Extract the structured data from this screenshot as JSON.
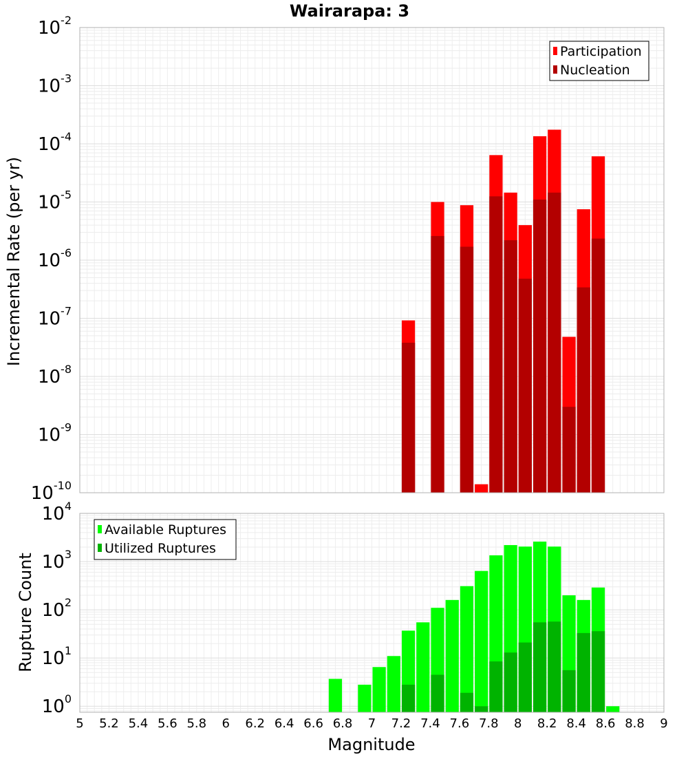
{
  "chart_data": [
    {
      "type": "bar",
      "title": "Wairarapa: 3",
      "xlabel": "",
      "ylabel": "Incremental Rate (per yr)",
      "yscale": "log",
      "ylim": [
        1e-10,
        0.01
      ],
      "xlim": [
        5,
        9
      ],
      "bar_width": 0.1,
      "grid": true,
      "legend_position": "top-right",
      "y_ticks": [
        {
          "base": "10",
          "exp": "-10",
          "value": 1e-10
        },
        {
          "base": "10",
          "exp": "-9",
          "value": 1e-09
        },
        {
          "base": "10",
          "exp": "-8",
          "value": 1e-08
        },
        {
          "base": "10",
          "exp": "-7",
          "value": 1e-07
        },
        {
          "base": "10",
          "exp": "-6",
          "value": 1e-06
        },
        {
          "base": "10",
          "exp": "-5",
          "value": 1e-05
        },
        {
          "base": "10",
          "exp": "-4",
          "value": 0.0001
        },
        {
          "base": "10",
          "exp": "-3",
          "value": 0.001
        },
        {
          "base": "10",
          "exp": "-2",
          "value": 0.01
        }
      ],
      "series": [
        {
          "name": "Participation",
          "color": "#ff0000",
          "x": [
            7.25,
            7.45,
            7.65,
            7.75,
            7.85,
            7.95,
            8.05,
            8.15,
            8.25,
            8.35,
            8.45,
            8.55
          ],
          "values": [
            9.2e-08,
            1e-05,
            8.8e-06,
            1.4e-10,
            6.4e-05,
            1.45e-05,
            4e-06,
            0.000135,
            0.000175,
            4.8e-08,
            7.5e-06,
            6.1e-05
          ]
        },
        {
          "name": "Nucleation",
          "color": "#b30000",
          "x": [
            7.25,
            7.45,
            7.65,
            7.85,
            7.95,
            8.05,
            8.15,
            8.25,
            8.35,
            8.45,
            8.55
          ],
          "values": [
            3.8e-08,
            2.6e-06,
            1.7e-06,
            1.25e-05,
            2.2e-06,
            4.8e-07,
            1.1e-05,
            1.45e-05,
            3e-09,
            3.4e-07,
            2.35e-06
          ]
        }
      ]
    },
    {
      "type": "bar",
      "title": "",
      "xlabel": "Magnitude",
      "ylabel": "Rupture Count",
      "yscale": "log",
      "ylim": [
        0.75,
        10000
      ],
      "xlim": [
        5,
        9
      ],
      "bar_width": 0.1,
      "grid": true,
      "legend_position": "top-left",
      "y_ticks": [
        {
          "base": "10",
          "exp": "0",
          "value": 1
        },
        {
          "base": "10",
          "exp": "1",
          "value": 10
        },
        {
          "base": "10",
          "exp": "2",
          "value": 100
        },
        {
          "base": "10",
          "exp": "3",
          "value": 1000
        },
        {
          "base": "10",
          "exp": "4",
          "value": 10000
        }
      ],
      "x_ticks": [
        "5",
        "5.2",
        "5.4",
        "5.6",
        "5.8",
        "6",
        "6.2",
        "6.4",
        "6.6",
        "6.8",
        "7",
        "7.2",
        "7.4",
        "7.6",
        "7.8",
        "8",
        "8.2",
        "8.4",
        "8.6",
        "8.8",
        "9"
      ],
      "x_tick_values": [
        5,
        5.2,
        5.4,
        5.6,
        5.8,
        6,
        6.2,
        6.4,
        6.6,
        6.8,
        7,
        7.2,
        7.4,
        7.6,
        7.8,
        8,
        8.2,
        8.4,
        8.6,
        8.8,
        9
      ],
      "series": [
        {
          "name": "Available Ruptures",
          "color": "#00ff00",
          "x": [
            6.75,
            6.95,
            7.05,
            7.15,
            7.25,
            7.35,
            7.45,
            7.55,
            7.65,
            7.75,
            7.85,
            7.95,
            8.05,
            8.15,
            8.25,
            8.35,
            8.45,
            8.55,
            8.65
          ],
          "values": [
            3.7,
            2.8,
            6.5,
            11,
            37,
            55,
            110,
            160,
            310,
            640,
            1350,
            2200,
            2050,
            2600,
            2050,
            200,
            160,
            290,
            1
          ]
        },
        {
          "name": "Utilized Ruptures",
          "color": "#00b300",
          "x": [
            7.25,
            7.45,
            7.65,
            7.75,
            7.85,
            7.95,
            8.05,
            8.15,
            8.25,
            8.35,
            8.45,
            8.55
          ],
          "values": [
            2.8,
            4.5,
            1.9,
            1.0,
            8.5,
            13,
            21,
            55,
            57,
            5.6,
            33,
            36
          ]
        }
      ]
    }
  ]
}
